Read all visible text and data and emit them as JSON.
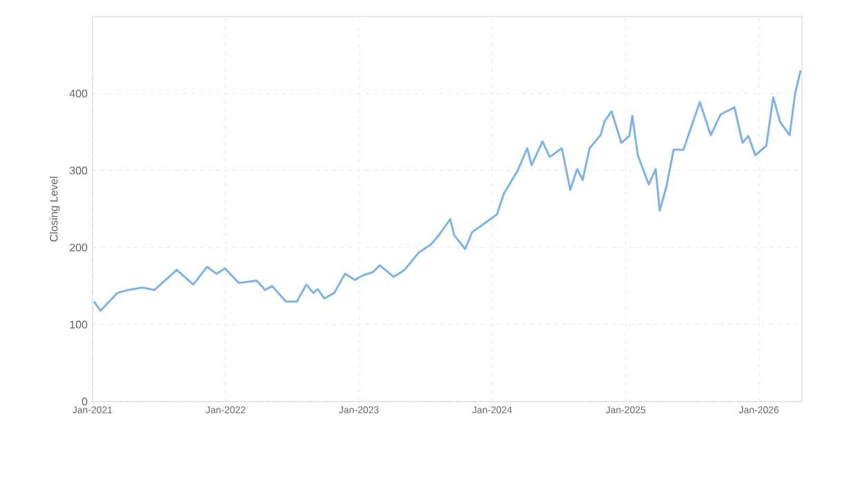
{
  "chart_data": {
    "type": "line",
    "ylabel": "Closing Level",
    "color": "#7fb2e5",
    "x": [
      "2021-01-05",
      "2021-01-23",
      "2021-03-10",
      "2021-04-09",
      "2021-05-17",
      "2021-06-20",
      "2021-08-20",
      "2021-10-04",
      "2021-11-11",
      "2021-12-07",
      "2021-12-30",
      "2022-02-06",
      "2022-03-27",
      "2022-04-19",
      "2022-05-08",
      "2022-06-15",
      "2022-07-15",
      "2022-08-10",
      "2022-08-29",
      "2022-09-10",
      "2022-09-28",
      "2022-10-25",
      "2022-11-24",
      "2022-12-21",
      "2023-01-12",
      "2023-02-08",
      "2023-02-27",
      "2023-04-06",
      "2023-05-06",
      "2023-06-13",
      "2023-07-17",
      "2023-08-08",
      "2023-09-08",
      "2023-09-19",
      "2023-10-19",
      "2023-11-07",
      "2023-12-07",
      "2024-01-14",
      "2024-02-02",
      "2024-03-11",
      "2024-04-06",
      "2024-04-18",
      "2024-05-18",
      "2024-06-06",
      "2024-06-14",
      "2024-07-10",
      "2024-08-02",
      "2024-08-21",
      "2024-09-05",
      "2024-09-24",
      "2024-10-24",
      "2024-11-04",
      "2024-11-23",
      "2024-12-20",
      "2025-01-11",
      "2025-01-19",
      "2025-02-03",
      "2025-03-05",
      "2025-03-24",
      "2025-04-04",
      "2025-04-23",
      "2025-05-12",
      "2025-06-08",
      "2025-07-04",
      "2025-07-23",
      "2025-08-22",
      "2025-09-18",
      "2025-10-26",
      "2025-11-17",
      "2025-12-03",
      "2025-12-22",
      "2026-01-21",
      "2026-02-09",
      "2026-02-28",
      "2026-03-26",
      "2026-04-10",
      "2026-04-25"
    ],
    "values": [
      130,
      118,
      141,
      145,
      148,
      145,
      171,
      152,
      175,
      166,
      173,
      154,
      157,
      145,
      150,
      130,
      130,
      152,
      141,
      146,
      134,
      141,
      166,
      158,
      164,
      168,
      177,
      162,
      171,
      193,
      204,
      216,
      237,
      216,
      198,
      220,
      230,
      243,
      270,
      300,
      329,
      307,
      338,
      318,
      320,
      329,
      275,
      302,
      288,
      329,
      346,
      364,
      377,
      336,
      345,
      371,
      320,
      282,
      302,
      248,
      280,
      327,
      327,
      363,
      389,
      346,
      373,
      382,
      336,
      345,
      320,
      332,
      395,
      363,
      346,
      400,
      430
    ],
    "xlim": [
      "2021-01-01",
      "2026-04-29"
    ],
    "xticks": [
      {
        "value": "2021-01-01",
        "label": "Jan-2021"
      },
      {
        "value": "2022-01-01",
        "label": "Jan-2022"
      },
      {
        "value": "2023-01-01",
        "label": "Jan-2023"
      },
      {
        "value": "2024-01-01",
        "label": "Jan-2024"
      },
      {
        "value": "2025-01-01",
        "label": "Jan-2025"
      },
      {
        "value": "2026-01-01",
        "label": "Jan-2026"
      }
    ],
    "ylim": [
      0,
      500
    ],
    "yticks": [
      0,
      100,
      200,
      300,
      400
    ],
    "grid": true,
    "line_style": "solid"
  }
}
